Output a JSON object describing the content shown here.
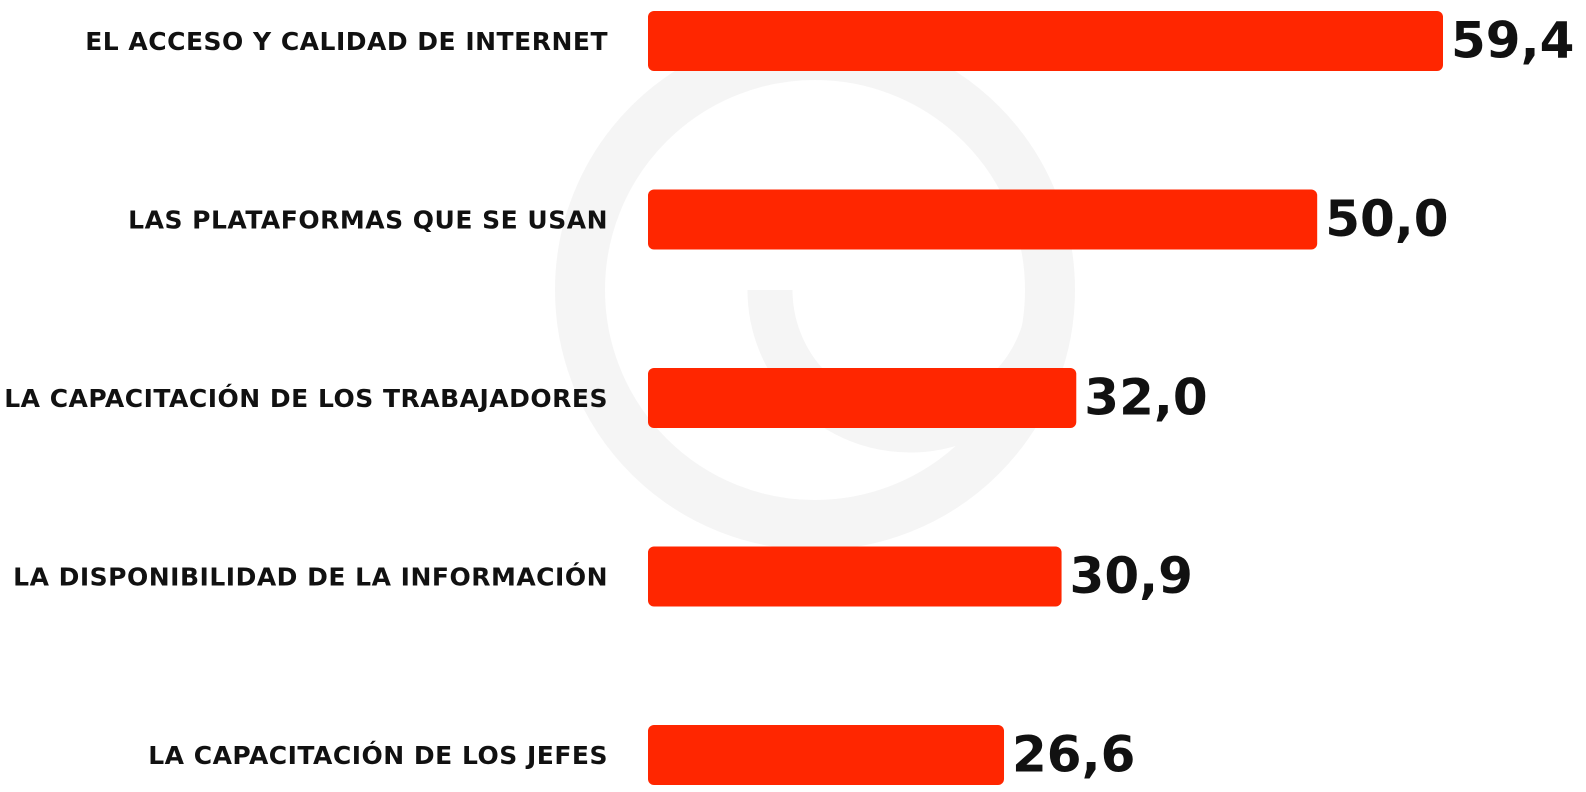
{
  "chart_data": {
    "type": "bar",
    "orientation": "horizontal",
    "categories": [
      "EL ACCESO Y CALIDAD DE INTERNET",
      "LAS PLATAFORMAS QUE SE USAN",
      "LA CAPACITACIÓN DE LOS TRABAJADORES",
      "LA DISPONIBILIDAD DE LA INFORMACIÓN",
      "LA CAPACITACIÓN DE LOS JEFES"
    ],
    "values": [
      59.4,
      50.0,
      32.0,
      30.9,
      26.6
    ],
    "value_labels": [
      "59,4",
      "50,0",
      "32,0",
      "30,9",
      "26,6"
    ],
    "color": "#ff2600"
  }
}
